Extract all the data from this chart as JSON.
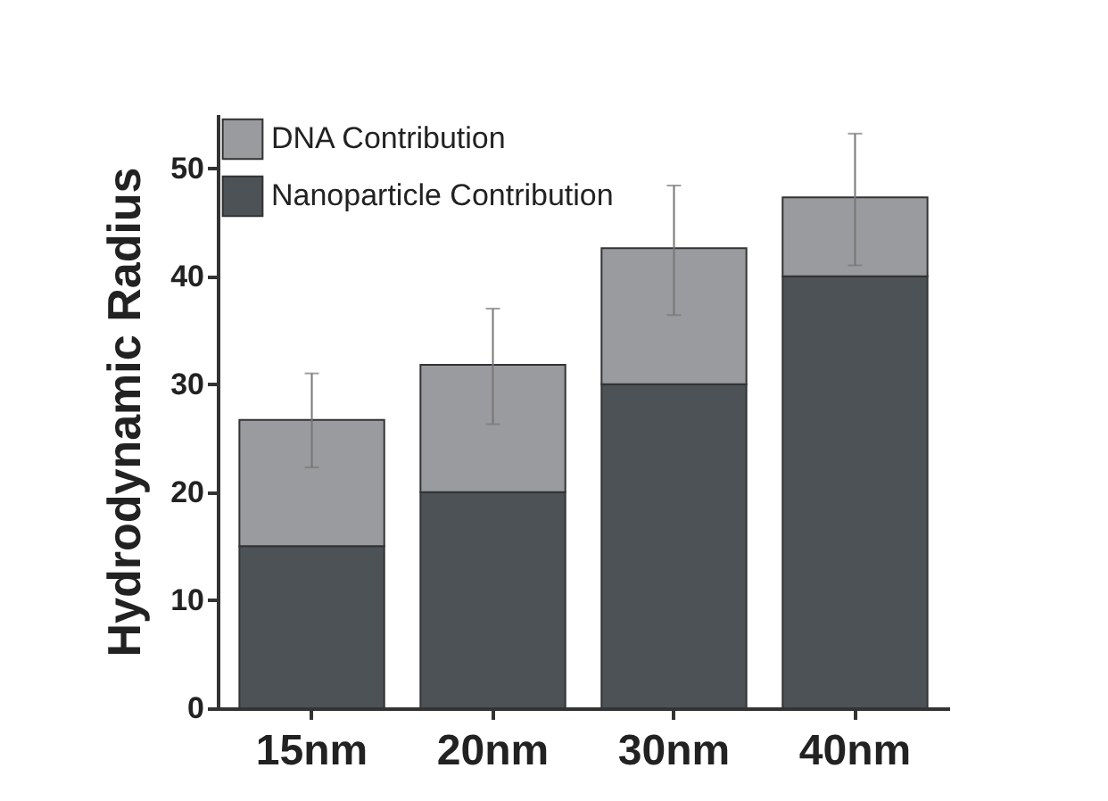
{
  "chart_data": {
    "type": "bar",
    "stacked": true,
    "ylabel": "Hydrodynamic Radius",
    "categories": [
      "15nm",
      "20nm",
      "30nm",
      "40nm"
    ],
    "series": [
      {
        "name": "Nanoparticle Contribution",
        "color": "#4d5257",
        "values": [
          15,
          20,
          30,
          40
        ]
      },
      {
        "name": "DNA Contribution",
        "color": "#9a9b9e",
        "values": [
          11.7,
          11.8,
          12.6,
          7.3
        ],
        "errors": [
          [
            22.3,
            31
          ],
          [
            26.3,
            37
          ],
          [
            36.4,
            48.4
          ],
          [
            41,
            53.2
          ]
        ]
      }
    ],
    "ylim": [
      0,
      55
    ],
    "yticks": [
      0,
      10,
      20,
      30,
      40,
      50
    ],
    "legend": "top left"
  }
}
